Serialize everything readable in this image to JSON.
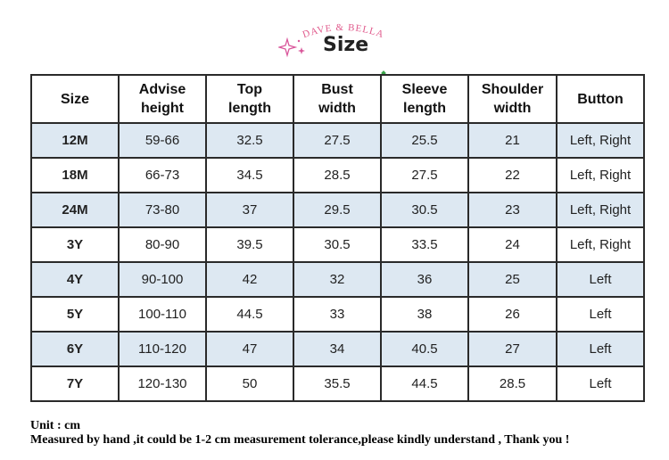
{
  "header": {
    "brand": "DAVE & BELLA",
    "title": "Size"
  },
  "table": {
    "columns": [
      [
        "Size"
      ],
      [
        "Advise",
        "height"
      ],
      [
        "Top",
        "length"
      ],
      [
        "Bust",
        "width"
      ],
      [
        "Sleeve",
        "length"
      ],
      [
        "Shoulder",
        "width"
      ],
      [
        "Button"
      ]
    ],
    "rows": [
      [
        "12M",
        "59-66",
        "32.5",
        "27.5",
        "25.5",
        "21",
        "Left, Right"
      ],
      [
        "18M",
        "66-73",
        "34.5",
        "28.5",
        "27.5",
        "22",
        "Left, Right"
      ],
      [
        "24M",
        "73-80",
        "37",
        "29.5",
        "30.5",
        "23",
        "Left, Right"
      ],
      [
        "3Y",
        "80-90",
        "39.5",
        "30.5",
        "33.5",
        "24",
        "Left, Right"
      ],
      [
        "4Y",
        "90-100",
        "42",
        "32",
        "36",
        "25",
        "Left"
      ],
      [
        "5Y",
        "100-110",
        "44.5",
        "33",
        "38",
        "26",
        "Left"
      ],
      [
        "6Y",
        "110-120",
        "47",
        "34",
        "40.5",
        "27",
        "Left"
      ],
      [
        "7Y",
        "120-130",
        "50",
        "35.5",
        "44.5",
        "28.5",
        "Left"
      ]
    ]
  },
  "notes": {
    "unit": "Unit : cm",
    "disclaimer": "Measured by hand ,it could be 1-2 cm measurement tolerance,please kindly understand , Thank you !"
  },
  "colors": {
    "shaded_row": "#dde8f2",
    "brand_pink": "#e05a8c",
    "border": "#2a2a2a"
  },
  "icons": [
    "sparkle-icon"
  ]
}
